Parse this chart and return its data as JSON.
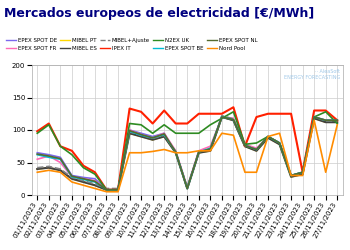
{
  "title": "Mercados europeos de electricidad [€/MWh]",
  "dates": [
    "01/11/2023",
    "02/11/2023",
    "03/11/2023",
    "04/11/2023",
    "05/11/2023",
    "06/11/2023",
    "07/11/2023",
    "08/11/2023",
    "09/11/2023",
    "10/11/2023",
    "11/11/2023",
    "12/11/2023",
    "13/11/2023",
    "14/11/2023",
    "15/11/2023",
    "16/11/2023",
    "17/11/2023",
    "18/11/2023",
    "19/11/2023",
    "20/11/2023",
    "21/11/2023",
    "22/11/2023",
    "23/11/2023",
    "24/11/2023",
    "25/11/2023",
    "26/11/2023",
    "27/11/2023"
  ],
  "series": {
    "EPEX SPOT DE": {
      "color": "#7b68ee",
      "values": [
        65,
        62,
        58,
        30,
        27,
        25,
        8,
        8,
        100,
        95,
        90,
        95,
        65,
        10,
        65,
        70,
        120,
        115,
        75,
        70,
        90,
        80,
        30,
        35,
        120,
        115,
        115
      ],
      "lw": 1.2,
      "ls": "-"
    },
    "EPEX SPOT FR": {
      "color": "#ff69b4",
      "values": [
        55,
        60,
        50,
        28,
        25,
        22,
        8,
        8,
        100,
        93,
        88,
        95,
        68,
        12,
        68,
        75,
        120,
        118,
        78,
        72,
        90,
        80,
        30,
        35,
        120,
        115,
        115
      ],
      "lw": 1.2,
      "ls": "-"
    },
    "MIBEL PT": {
      "color": "#ffd700",
      "values": [
        40,
        42,
        38,
        25,
        20,
        15,
        8,
        8,
        95,
        90,
        85,
        90,
        65,
        10,
        65,
        68,
        120,
        115,
        75,
        68,
        88,
        78,
        28,
        32,
        118,
        112,
        112
      ],
      "lw": 1.2,
      "ls": "-"
    },
    "MIBEL ES": {
      "color": "#404040",
      "values": [
        40,
        42,
        38,
        25,
        20,
        15,
        8,
        8,
        95,
        90,
        85,
        90,
        65,
        10,
        65,
        68,
        120,
        115,
        75,
        68,
        88,
        78,
        28,
        32,
        118,
        112,
        112
      ],
      "lw": 1.5,
      "ls": "-"
    },
    "MIBEL+Ajuste": {
      "color": "#808080",
      "values": [
        42,
        44,
        40,
        27,
        22,
        17,
        10,
        10,
        97,
        92,
        87,
        92,
        67,
        12,
        67,
        70,
        122,
        117,
        77,
        70,
        90,
        80,
        30,
        34,
        120,
        114,
        114
      ],
      "lw": 1.2,
      "ls": "--"
    },
    "IPEX IT": {
      "color": "#ff2000",
      "values": [
        98,
        110,
        75,
        68,
        45,
        35,
        8,
        8,
        133,
        128,
        110,
        130,
        110,
        110,
        125,
        125,
        125,
        135,
        75,
        120,
        125,
        125,
        125,
        35,
        130,
        130,
        115
      ],
      "lw": 1.5,
      "ls": "-"
    },
    "N2EX UK": {
      "color": "#2e8b22",
      "values": [
        95,
        108,
        75,
        62,
        42,
        32,
        8,
        8,
        110,
        108,
        95,
        108,
        95,
        95,
        95,
        108,
        118,
        128,
        78,
        80,
        90,
        80,
        30,
        35,
        120,
        128,
        110
      ],
      "lw": 1.2,
      "ls": "-"
    },
    "EPEX SPOT BE": {
      "color": "#00bcd4",
      "values": [
        62,
        58,
        55,
        28,
        24,
        20,
        8,
        8,
        98,
        92,
        88,
        93,
        66,
        10,
        66,
        72,
        120,
        116,
        76,
        70,
        90,
        80,
        30,
        35,
        120,
        115,
        115
      ],
      "lw": 1.2,
      "ls": "-"
    },
    "EPEX SPOT NL": {
      "color": "#556b2f",
      "values": [
        63,
        60,
        56,
        29,
        25,
        21,
        8,
        8,
        99,
        93,
        88,
        94,
        66,
        10,
        66,
        71,
        120,
        116,
        76,
        70,
        90,
        80,
        30,
        35,
        120,
        115,
        115
      ],
      "lw": 1.2,
      "ls": "-"
    },
    "Nord Pool": {
      "color": "#ff8c00",
      "values": [
        35,
        38,
        35,
        20,
        15,
        10,
        5,
        5,
        65,
        65,
        67,
        70,
        65,
        65,
        68,
        68,
        95,
        92,
        35,
        35,
        90,
        95,
        30,
        30,
        115,
        35,
        108
      ],
      "lw": 1.2,
      "ls": "-"
    }
  },
  "ylim": [
    0,
    200
  ],
  "yticks": [
    0,
    50,
    100,
    150,
    200
  ],
  "bg_color": "#ffffff",
  "grid_color": "#cccccc",
  "title_color": "#000080",
  "title_fontsize": 9.0,
  "tick_label_size": 5.0,
  "legend_order": [
    "EPEX SPOT DE",
    "EPEX SPOT FR",
    "MIBEL PT",
    "MIBEL ES",
    "MIBEL+Ajuste",
    "IPEX IT",
    "N2EX UK",
    "EPEX SPOT BE",
    "EPEX SPOT NL",
    "Nord Pool"
  ],
  "watermark_text": "AleaSoft\nENERGY FORECASTING",
  "watermark_color": "#a0c8e8"
}
